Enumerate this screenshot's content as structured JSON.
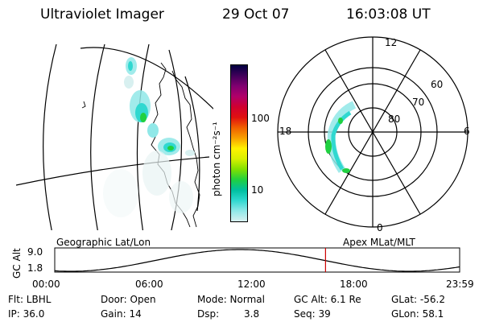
{
  "header": {
    "title": "Ultraviolet Imager",
    "date": "29 Oct 07",
    "time": "16:03:08 UT"
  },
  "colorbar": {
    "label": "photon cm⁻²s⁻¹",
    "ticks": [
      "100",
      "10"
    ],
    "colors": [
      "#000040",
      "#40005a",
      "#800070",
      "#b0006a",
      "#d00030",
      "#e01010",
      "#f06000",
      "#f8a000",
      "#fff200",
      "#d8f000",
      "#80e000",
      "#20d040",
      "#00c0a0",
      "#30d8d0",
      "#90e8e8",
      "#d8f0f0"
    ]
  },
  "polar": {
    "mlt_labels": {
      "top": "12",
      "left": "18",
      "right": "6",
      "bottom": "0"
    },
    "lat_labels": [
      "60",
      "70",
      "80"
    ]
  },
  "altitude": {
    "label": "GC Alt",
    "ymax": "9.0",
    "ymin": "1.8",
    "left_title": "Geographic Lat/Lon",
    "right_title": "Apex MLat/MLT",
    "time_ticks": [
      "00:00",
      "06:00",
      "12:00",
      "18:00",
      "23:59"
    ],
    "marker_time_hours": 16.05
  },
  "status": {
    "flt": "Flt: LBHL",
    "door": "Door: Open",
    "mode": "Mode: Normal",
    "gcalt": "GC Alt: 6.1 Re",
    "glat": "GLat: -56.2",
    "ip": "IP: 36.0",
    "gain": "Gain: 14",
    "dsp_label": "Dsp:",
    "dsp_value": "3.8",
    "seq": "Seq: 39",
    "glon": "GLon: 58.1"
  }
}
